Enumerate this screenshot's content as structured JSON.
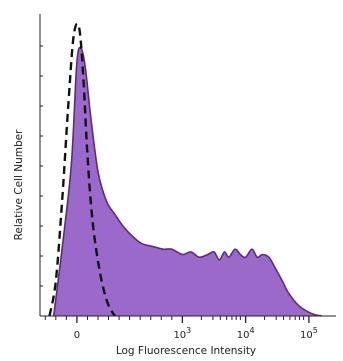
{
  "chart_data": {
    "type": "area",
    "xlabel": "Log Fluorescence Intensity",
    "ylabel": "Relative Cell Number",
    "x_scale": "biexponential",
    "x_ticks": [
      "0",
      "10^3",
      "10^4",
      "10^5"
    ],
    "grid": false,
    "legend": "none",
    "series": [
      {
        "style": "filled",
        "color": "#9b69c9",
        "edge_color": "#5a2c80",
        "x": [
          -0.22,
          -0.12,
          -0.05,
          0.0,
          0.04,
          0.08,
          0.13,
          0.2,
          0.28,
          0.36,
          0.45,
          0.55,
          0.62,
          0.72,
          0.82,
          0.9,
          1.0,
          1.08,
          1.16,
          1.24,
          1.3,
          1.35,
          1.4,
          1.44,
          1.5,
          1.55,
          1.6,
          1.66,
          1.71,
          1.76,
          1.82,
          1.88,
          1.95,
          2.0,
          2.1,
          2.22,
          2.32
        ],
        "y": [
          0.0,
          0.32,
          0.58,
          0.95,
          1.0,
          0.93,
          0.75,
          0.54,
          0.43,
          0.38,
          0.33,
          0.29,
          0.27,
          0.26,
          0.25,
          0.25,
          0.23,
          0.24,
          0.22,
          0.23,
          0.24,
          0.21,
          0.24,
          0.22,
          0.25,
          0.23,
          0.22,
          0.25,
          0.22,
          0.23,
          0.22,
          0.18,
          0.13,
          0.09,
          0.04,
          0.01,
          0.0
        ]
      },
      {
        "style": "dashed",
        "color": "#111111",
        "x": [
          -0.26,
          -0.2,
          -0.14,
          -0.08,
          -0.03,
          0.02,
          0.06,
          0.1,
          0.15,
          0.22,
          0.29,
          0.36
        ],
        "y": [
          0.0,
          0.13,
          0.43,
          0.8,
          1.05,
          1.08,
          0.9,
          0.6,
          0.35,
          0.16,
          0.05,
          0.0
        ]
      }
    ],
    "xlim": [
      -0.35,
      2.4
    ],
    "ylim": [
      0,
      1.1
    ]
  }
}
